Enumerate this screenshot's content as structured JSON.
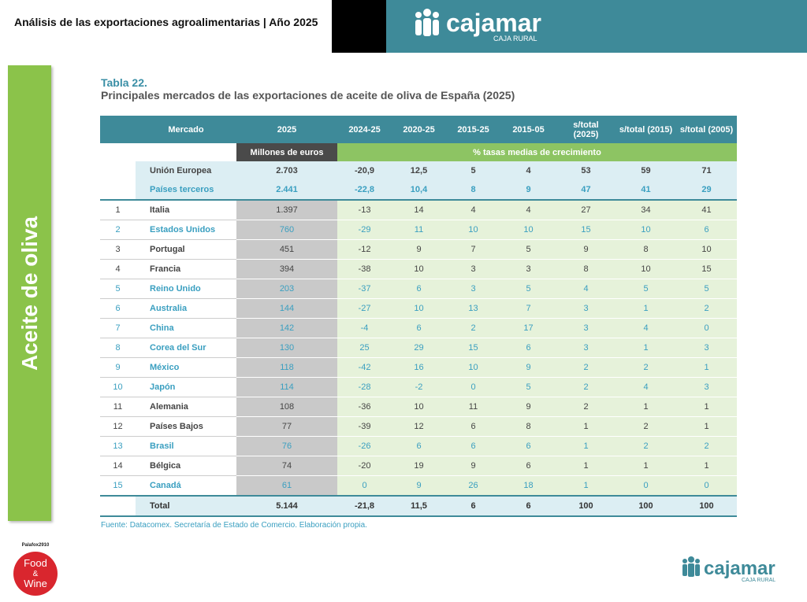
{
  "header": {
    "title": "Análisis de las exportaciones agroalimentarias | Año 2025",
    "logo": {
      "name": "cajamar",
      "tagline": "CAJA RURAL"
    }
  },
  "sidebar": "Aceite de oliva",
  "table": {
    "label": "Tabla 22.",
    "caption": "Principales mercados de las exportaciones de aceite de oliva de España (2025)",
    "columns": [
      "Mercado",
      "2025",
      "2024-25",
      "2020-25",
      "2015-25",
      "2015-05",
      "s/total (2025)",
      "s/total (2015)",
      "s/total (2005)"
    ],
    "groups": [
      "Millones de euros",
      "% tasas medias de crecimiento"
    ],
    "aggregates": [
      {
        "name": "Unión Europea",
        "values": [
          "2.703",
          "-20,9",
          "12,5",
          "5",
          "4",
          "53",
          "59",
          "71"
        ],
        "color": "#444444"
      },
      {
        "name": "Países terceros",
        "values": [
          "2.441",
          "-22,8",
          "10,4",
          "8",
          "9",
          "47",
          "41",
          "29"
        ],
        "color": "#3a9fc0"
      }
    ],
    "rows": [
      {
        "rank": "1",
        "name": "Italia",
        "values": [
          "1.397",
          "-13",
          "14",
          "4",
          "4",
          "27",
          "34",
          "41"
        ],
        "color": "#444444"
      },
      {
        "rank": "2",
        "name": "Estados Unidos",
        "values": [
          "760",
          "-29",
          "11",
          "10",
          "10",
          "15",
          "10",
          "6"
        ],
        "color": "#3a9fc0"
      },
      {
        "rank": "3",
        "name": "Portugal",
        "values": [
          "451",
          "-12",
          "9",
          "7",
          "5",
          "9",
          "8",
          "10"
        ],
        "color": "#444444"
      },
      {
        "rank": "4",
        "name": "Francia",
        "values": [
          "394",
          "-38",
          "10",
          "3",
          "3",
          "8",
          "10",
          "15"
        ],
        "color": "#444444"
      },
      {
        "rank": "5",
        "name": "Reino Unido",
        "values": [
          "203",
          "-37",
          "6",
          "3",
          "5",
          "4",
          "5",
          "5"
        ],
        "color": "#3a9fc0"
      },
      {
        "rank": "6",
        "name": "Australia",
        "values": [
          "144",
          "-27",
          "10",
          "13",
          "7",
          "3",
          "1",
          "2"
        ],
        "color": "#3a9fc0"
      },
      {
        "rank": "7",
        "name": "China",
        "values": [
          "142",
          "-4",
          "6",
          "2",
          "17",
          "3",
          "4",
          "0"
        ],
        "color": "#3a9fc0"
      },
      {
        "rank": "8",
        "name": "Corea del Sur",
        "values": [
          "130",
          "25",
          "29",
          "15",
          "6",
          "3",
          "1",
          "3"
        ],
        "color": "#3a9fc0"
      },
      {
        "rank": "9",
        "name": "México",
        "values": [
          "118",
          "-42",
          "16",
          "10",
          "9",
          "2",
          "2",
          "1"
        ],
        "color": "#3a9fc0"
      },
      {
        "rank": "10",
        "name": "Japón",
        "values": [
          "114",
          "-28",
          "-2",
          "0",
          "5",
          "2",
          "4",
          "3"
        ],
        "color": "#3a9fc0"
      },
      {
        "rank": "11",
        "name": "Alemania",
        "values": [
          "108",
          "-36",
          "10",
          "11",
          "9",
          "2",
          "1",
          "1"
        ],
        "color": "#444444"
      },
      {
        "rank": "12",
        "name": "Países Bajos",
        "values": [
          "77",
          "-39",
          "12",
          "6",
          "8",
          "1",
          "2",
          "1"
        ],
        "color": "#444444"
      },
      {
        "rank": "13",
        "name": "Brasil",
        "values": [
          "76",
          "-26",
          "6",
          "6",
          "6",
          "1",
          "2",
          "2"
        ],
        "color": "#3a9fc0"
      },
      {
        "rank": "14",
        "name": "Bélgica",
        "values": [
          "74",
          "-20",
          "19",
          "9",
          "6",
          "1",
          "1",
          "1"
        ],
        "color": "#444444"
      },
      {
        "rank": "15",
        "name": "Canadá",
        "values": [
          "61",
          "0",
          "9",
          "26",
          "18",
          "1",
          "0",
          "0"
        ],
        "color": "#3a9fc0"
      }
    ],
    "total": {
      "name": "Total",
      "values": [
        "5.144",
        "-21,8",
        "11,5",
        "6",
        "6",
        "100",
        "100",
        "100"
      ]
    },
    "source": "Fuente: Datacomex. Secretaría de Estado de Comercio. Elaboración propia."
  },
  "footer": {
    "badge": {
      "top": "Palafox2910",
      "lines": [
        "Food",
        "&",
        "Wine"
      ]
    },
    "logo": {
      "name": "cajamar",
      "tagline": "CAJA RURAL"
    }
  }
}
